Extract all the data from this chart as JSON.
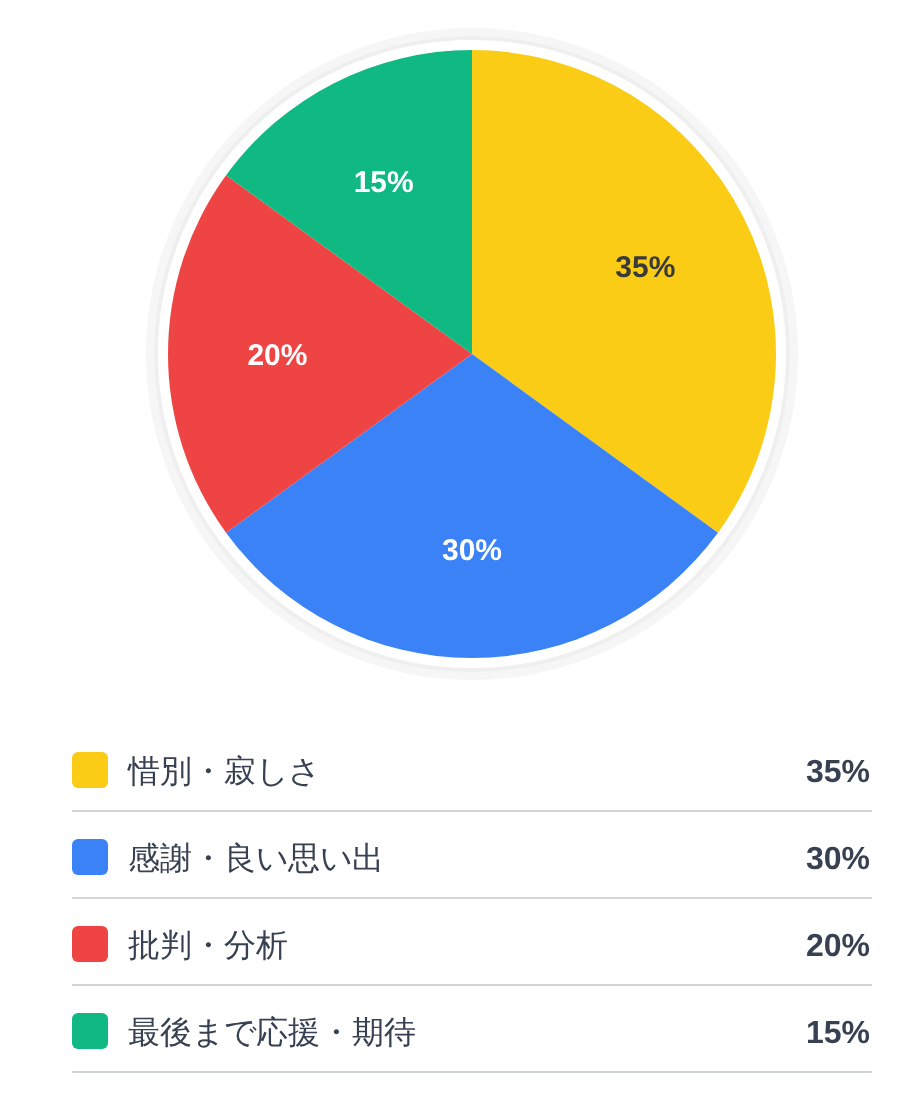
{
  "chart_data": {
    "type": "pie",
    "categories": [
      "惜別・寂しさ",
      "感謝・良い思い出",
      "批判・分析",
      "最後まで応援・期待"
    ],
    "values": [
      35,
      30,
      20,
      15
    ],
    "value_labels": [
      "35%",
      "30%",
      "20%",
      "15%"
    ],
    "colors": [
      "#facc15",
      "#3b82f6",
      "#ef4444",
      "#10b981"
    ],
    "legend": "bottom"
  }
}
